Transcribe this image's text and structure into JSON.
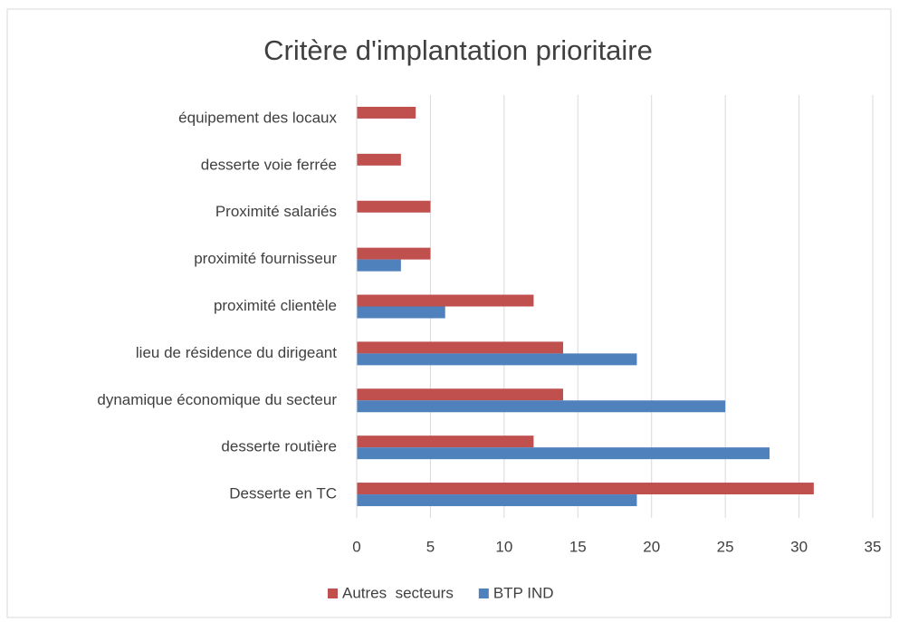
{
  "chart_data": {
    "type": "hbar",
    "title": "Critère d'implantation prioritaire",
    "categories": [
      "Desserte en TC",
      "desserte routière",
      "dynamique économique du secteur",
      "lieu de résidence du dirigeant",
      "proximité clientèle",
      "proximité fournisseur",
      "Proximité salariés",
      "desserte voie ferrée",
      "équipement des locaux"
    ],
    "series": [
      {
        "name": "Autres  secteurs",
        "color": "#c0504d",
        "values": [
          31,
          12,
          14,
          14,
          12,
          5,
          5,
          3,
          4
        ]
      },
      {
        "name": "BTP IND",
        "color": "#4f81bd",
        "values": [
          19,
          28,
          25,
          19,
          6,
          3,
          null,
          null,
          null
        ]
      }
    ],
    "xlim": [
      0,
      35
    ],
    "xticks": [
      0,
      5,
      10,
      15,
      20,
      25,
      30,
      35
    ],
    "grid": true,
    "legend": "bottom"
  }
}
